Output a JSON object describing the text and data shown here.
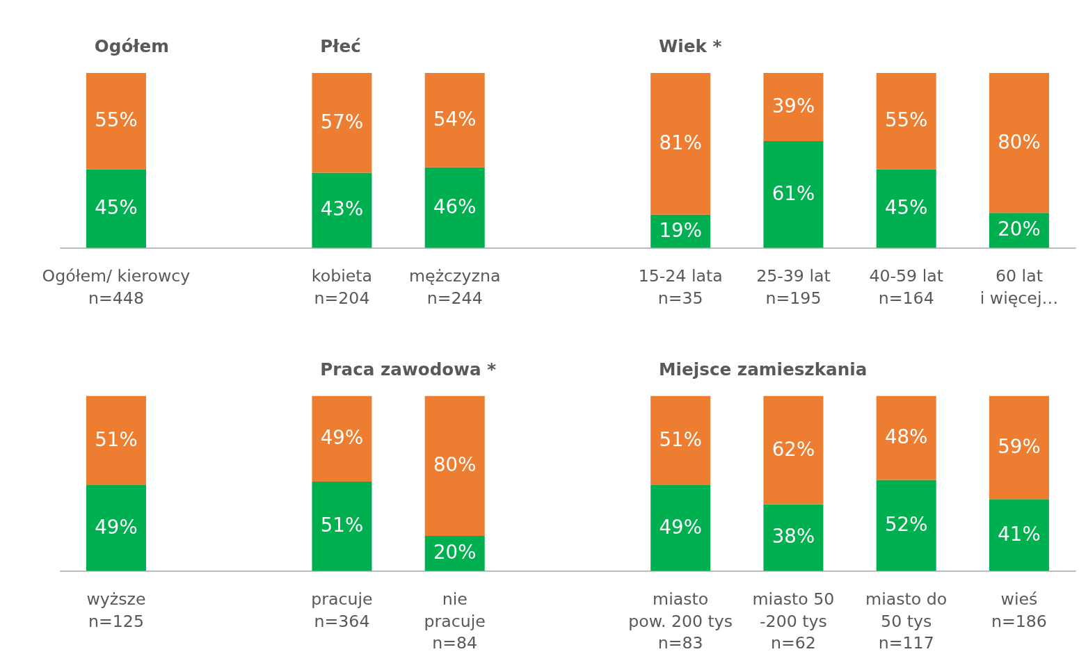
{
  "chart_data": [
    {
      "type": "bar",
      "stacked": true,
      "categories": [
        "Ogółem/ kierowcy\nn=448",
        null,
        "kobieta\nn=204",
        "mężczyzna\nn=244",
        null,
        "15-24 lata\nn=35",
        "25-39 lat\nn=195",
        "40-59 lat\nn=164",
        "60 lat\ni więcej…"
      ],
      "series": [
        {
          "color": "#00b050",
          "values": [
            45,
            null,
            43,
            46,
            null,
            19,
            61,
            45,
            20
          ],
          "value_labels": [
            "45%",
            null,
            "43%",
            "46%",
            null,
            "19%",
            "61%",
            "45%",
            "20%"
          ]
        },
        {
          "color": "#ed7d31",
          "values": [
            55,
            null,
            57,
            54,
            null,
            81,
            39,
            55,
            80
          ],
          "value_labels": [
            "55%",
            null,
            "57%",
            "54%",
            null,
            "81%",
            "39%",
            "55%",
            "80%"
          ]
        }
      ],
      "annotations": [
        "Ogółem",
        "Płeć",
        "Wiek *"
      ]
    },
    {
      "type": "bar",
      "stacked": true,
      "categories": [
        "wyższe\nn=125",
        null,
        "pracuje\nn=364",
        "nie\npracuje\nn=84",
        null,
        "miasto\npow. 200 tys\nn=83",
        "miasto 50\n-200 tys\nn=62",
        "miasto do\n50 tys\nn=117",
        "wieś\nn=186"
      ],
      "series": [
        {
          "color": "#00b050",
          "values": [
            49,
            null,
            51,
            20,
            null,
            49,
            38,
            52,
            41
          ],
          "value_labels": [
            "49%",
            null,
            "51%",
            "20%",
            null,
            "49%",
            "38%",
            "52%",
            "41%"
          ]
        },
        {
          "color": "#ed7d31",
          "values": [
            51,
            null,
            49,
            80,
            null,
            51,
            62,
            48,
            59
          ],
          "value_labels": [
            "51%",
            null,
            "49%",
            "80%",
            null,
            "51%",
            "62%",
            "48%",
            "59%"
          ]
        }
      ],
      "annotations": [
        "Praca zawodowa *",
        "Miejsce zamieszkania"
      ]
    }
  ]
}
